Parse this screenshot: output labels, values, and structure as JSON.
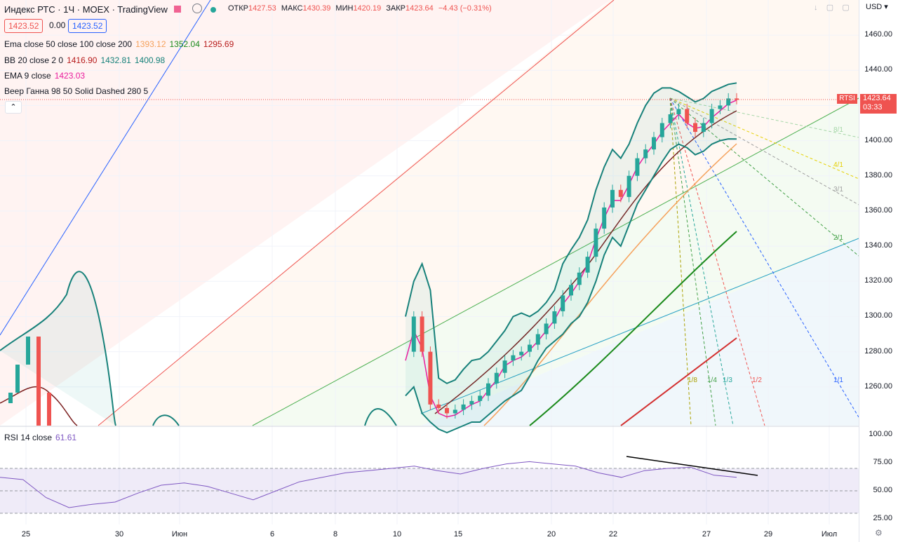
{
  "header": {
    "title": "Индекс РТС · 1Ч · MOEX · TradingView",
    "currency": "USD",
    "ohlc": [
      {
        "k": "ОТКР",
        "v": "1427.53"
      },
      {
        "k": "МАКС",
        "v": "1430.39"
      },
      {
        "k": "МИН",
        "v": "1420.19"
      },
      {
        "k": "ЗАКР",
        "v": "1423.64"
      }
    ],
    "change": "−4.43 (−0.31%)",
    "bid": "1423.52",
    "spread": "0.00",
    "ask": "1423.52"
  },
  "legend": {
    "ema": {
      "label": "Ema close 50 close 100 close 200",
      "v1": "1393.12",
      "v2": "1352.04",
      "v3": "1295.69"
    },
    "bb": {
      "label": "BB 20 close 2 0",
      "v1": "1416.90",
      "v2": "1432.81",
      "v3": "1400.98"
    },
    "ema9": {
      "label": "EMA 9 close",
      "v1": "1423.03"
    },
    "gann": {
      "label": "Веер Ганна 98 50 Solid Dashed 280 5"
    },
    "rsi": {
      "label": "RSI 14 close",
      "v1": "61.61"
    }
  },
  "price_tag": {
    "symbol": "RTSI",
    "price": "1423.64",
    "countdown": "03:33"
  },
  "gann_labels": [
    "8/1",
    "4/1",
    "3/1",
    "2/1",
    "1/1",
    "1/8",
    "1/4",
    "1/3",
    "1/2"
  ],
  "colors": {
    "up": "#26a69a",
    "down": "#ef5350",
    "bb": "#17817a",
    "ema9": "#e91e9f",
    "rsi": "#7e57c2",
    "ema50": "#7b1f1f",
    "ema100": "#f5a15b",
    "ema200": "#1b8a1b"
  },
  "chart_data": {
    "type": "line",
    "title": "Индекс РТС · 1Ч · MOEX",
    "y_ticks": [
      1460,
      1440,
      1420,
      1400,
      1380,
      1360,
      1340,
      1320,
      1300,
      1280,
      1260
    ],
    "y_tick_labels": [
      "1460.00",
      "1440.00",
      "1420.00",
      "1400.00",
      "1380.00",
      "1360.00",
      "1340.00",
      "1320.00",
      "1300.00",
      "1280.00",
      "1260.00"
    ],
    "ylim": [
      1238,
      1472
    ],
    "x_tick_labels": [
      "25",
      "30",
      "Июн",
      "6",
      "8",
      "10",
      "15",
      "20",
      "22",
      "27",
      "29",
      "Июл"
    ],
    "series": [
      {
        "name": "close",
        "values": [
          1280,
          1300,
          1280,
          1250,
          1248,
          1245,
          1247,
          1250,
          1252,
          1255,
          1262,
          1268,
          1275,
          1278,
          1280,
          1284,
          1290,
          1296,
          1303,
          1312,
          1318,
          1325,
          1334,
          1350,
          1362,
          1372,
          1368,
          1380,
          1390,
          1395,
          1402,
          1410,
          1415,
          1418,
          1410,
          1405,
          1410,
          1418,
          1420,
          1424,
          1423.64
        ]
      },
      {
        "name": "EMA 9",
        "values": [
          1275,
          1292,
          1282,
          1255,
          1245,
          1243,
          1244,
          1247,
          1250,
          1252,
          1258,
          1264,
          1272,
          1275,
          1277,
          1281,
          1286,
          1292,
          1298,
          1307,
          1313,
          1320,
          1330,
          1344,
          1356,
          1366,
          1366,
          1375,
          1385,
          1392,
          1398,
          1405,
          1410,
          1415,
          1410,
          1407,
          1408,
          1413,
          1417,
          1421,
          1423.03
        ]
      },
      {
        "name": "BB upper",
        "values": [
          1300,
          1320,
          1330,
          1315,
          1265,
          1262,
          1264,
          1270,
          1275,
          1276,
          1280,
          1286,
          1292,
          1300,
          1302,
          1300,
          1303,
          1308,
          1315,
          1330,
          1338,
          1345,
          1355,
          1372,
          1385,
          1395,
          1390,
          1398,
          1410,
          1420,
          1427,
          1430,
          1430,
          1428,
          1425,
          1422,
          1424,
          1428,
          1430,
          1432,
          1432.81
        ]
      },
      {
        "name": "BB lower",
        "values": [
          1255,
          1260,
          1245,
          1240,
          1236,
          1234,
          1236,
          1238,
          1240,
          1240,
          1244,
          1248,
          1252,
          1255,
          1258,
          1266,
          1275,
          1282,
          1286,
          1290,
          1296,
          1300,
          1308,
          1320,
          1335,
          1345,
          1340,
          1352,
          1364,
          1372,
          1380,
          1388,
          1395,
          1398,
          1396,
          1392,
          1394,
          1398,
          1400,
          1401,
          1400.98
        ]
      }
    ],
    "rsi": {
      "values": [
        62,
        60,
        44,
        35,
        38,
        40,
        48,
        55,
        57,
        54,
        48,
        42,
        50,
        58,
        62,
        66,
        68,
        70,
        72,
        68,
        65,
        70,
        74,
        76,
        74,
        72,
        66,
        62,
        68,
        70,
        71,
        64,
        62
      ],
      "ylim": [
        20,
        105
      ],
      "ticks": [
        100,
        75,
        50,
        25
      ],
      "tick_labels": [
        "100.00",
        "75.00",
        "50.00",
        "25.00"
      ],
      "band": [
        70,
        30
      ]
    },
    "grid": true,
    "legend": "top-left"
  }
}
